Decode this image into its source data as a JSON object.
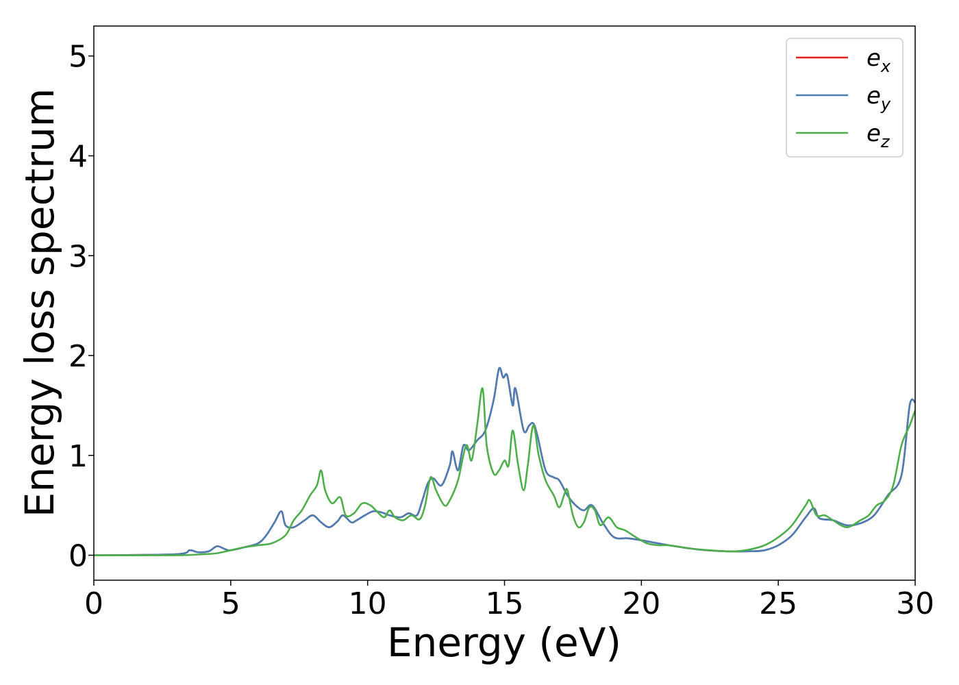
{
  "chart_data": {
    "type": "line",
    "xlabel": "Energy (eV)",
    "ylabel": "Energy loss spectrum",
    "xlim": [
      0,
      30
    ],
    "ylim": [
      -0.25,
      5.3
    ],
    "xticks": [
      0,
      5,
      10,
      15,
      20,
      25,
      30
    ],
    "yticks": [
      0,
      1,
      2,
      3,
      4,
      5
    ],
    "grid": false,
    "legend_position": "top-right",
    "series": [
      {
        "name": "e",
        "subscript": "x",
        "color": "#e41a1c",
        "x": [
          0,
          3.0,
          3.5,
          3.8,
          4.2,
          4.5,
          4.8,
          5.0,
          5.5,
          6.0,
          6.3,
          6.6,
          6.85,
          7.0,
          7.3,
          7.7,
          8.0,
          8.3,
          8.6,
          8.9,
          9.1,
          9.4,
          9.6,
          9.9,
          10.2,
          10.5,
          10.8,
          11.2,
          11.5,
          11.8,
          12.0,
          12.2,
          12.4,
          12.7,
          13.0,
          13.1,
          13.3,
          13.5,
          13.7,
          14.0,
          14.3,
          14.6,
          14.8,
          14.95,
          15.1,
          15.3,
          15.4,
          15.7,
          15.9,
          16.05,
          16.2,
          16.5,
          16.8,
          17.0,
          17.3,
          17.6,
          17.9,
          18.2,
          18.6,
          19.0,
          19.5,
          20.0,
          21.0,
          22.0,
          23.0,
          24.0,
          24.5,
          25.0,
          25.5,
          26.0,
          26.3,
          26.5,
          27.0,
          27.5,
          28.0,
          28.5,
          29.0,
          29.5,
          29.8,
          30.0
        ],
        "y": [
          0.0,
          0.01,
          0.05,
          0.03,
          0.04,
          0.09,
          0.06,
          0.05,
          0.08,
          0.12,
          0.2,
          0.33,
          0.44,
          0.3,
          0.28,
          0.35,
          0.4,
          0.33,
          0.28,
          0.34,
          0.4,
          0.33,
          0.35,
          0.4,
          0.44,
          0.43,
          0.4,
          0.38,
          0.42,
          0.4,
          0.55,
          0.72,
          0.77,
          0.7,
          0.9,
          1.04,
          0.85,
          1.1,
          1.05,
          1.15,
          1.25,
          1.55,
          1.87,
          1.78,
          1.8,
          1.5,
          1.67,
          1.25,
          1.3,
          1.32,
          1.2,
          0.85,
          0.78,
          0.75,
          0.6,
          0.5,
          0.45,
          0.5,
          0.32,
          0.18,
          0.17,
          0.15,
          0.1,
          0.06,
          0.04,
          0.04,
          0.05,
          0.1,
          0.2,
          0.38,
          0.47,
          0.37,
          0.35,
          0.3,
          0.32,
          0.4,
          0.6,
          0.8,
          1.5,
          1.53
        ]
      },
      {
        "name": "e",
        "subscript": "y",
        "color": "#4a7fb5",
        "x": [
          0,
          3.0,
          3.5,
          3.8,
          4.2,
          4.5,
          4.8,
          5.0,
          5.5,
          6.0,
          6.3,
          6.6,
          6.85,
          7.0,
          7.3,
          7.7,
          8.0,
          8.3,
          8.6,
          8.9,
          9.1,
          9.4,
          9.6,
          9.9,
          10.2,
          10.5,
          10.8,
          11.2,
          11.5,
          11.8,
          12.0,
          12.2,
          12.4,
          12.7,
          13.0,
          13.1,
          13.3,
          13.5,
          13.7,
          14.0,
          14.3,
          14.6,
          14.8,
          14.95,
          15.1,
          15.3,
          15.4,
          15.7,
          15.9,
          16.05,
          16.2,
          16.5,
          16.8,
          17.0,
          17.3,
          17.6,
          17.9,
          18.2,
          18.6,
          19.0,
          19.5,
          20.0,
          21.0,
          22.0,
          23.0,
          24.0,
          24.5,
          25.0,
          25.5,
          26.0,
          26.3,
          26.5,
          27.0,
          27.5,
          28.0,
          28.5,
          29.0,
          29.5,
          29.8,
          30.0
        ],
        "y": [
          0.0,
          0.01,
          0.05,
          0.03,
          0.04,
          0.09,
          0.06,
          0.05,
          0.08,
          0.12,
          0.2,
          0.33,
          0.44,
          0.3,
          0.28,
          0.35,
          0.4,
          0.33,
          0.28,
          0.34,
          0.4,
          0.33,
          0.35,
          0.4,
          0.44,
          0.43,
          0.4,
          0.38,
          0.42,
          0.4,
          0.55,
          0.72,
          0.77,
          0.7,
          0.9,
          1.04,
          0.85,
          1.1,
          1.05,
          1.15,
          1.25,
          1.55,
          1.87,
          1.78,
          1.8,
          1.5,
          1.67,
          1.25,
          1.3,
          1.32,
          1.2,
          0.85,
          0.78,
          0.75,
          0.6,
          0.5,
          0.45,
          0.5,
          0.32,
          0.18,
          0.17,
          0.15,
          0.1,
          0.06,
          0.04,
          0.04,
          0.05,
          0.1,
          0.2,
          0.38,
          0.47,
          0.37,
          0.35,
          0.3,
          0.32,
          0.4,
          0.6,
          0.8,
          1.5,
          1.53
        ]
      },
      {
        "name": "e",
        "subscript": "z",
        "color": "#4daf4a",
        "x": [
          0,
          3.0,
          4.0,
          4.5,
          5.0,
          5.5,
          6.0,
          6.5,
          7.0,
          7.3,
          7.6,
          7.9,
          8.15,
          8.3,
          8.45,
          8.7,
          9.0,
          9.2,
          9.5,
          9.8,
          10.1,
          10.3,
          10.6,
          10.8,
          11.0,
          11.3,
          11.6,
          11.9,
          12.1,
          12.3,
          12.5,
          12.8,
          13.0,
          13.3,
          13.6,
          13.8,
          14.0,
          14.2,
          14.35,
          14.6,
          14.8,
          15.0,
          15.15,
          15.3,
          15.5,
          15.7,
          15.85,
          16.05,
          16.25,
          16.5,
          16.8,
          17.0,
          17.2,
          17.3,
          17.5,
          17.7,
          17.9,
          18.1,
          18.3,
          18.5,
          18.8,
          19.1,
          19.4,
          19.8,
          20.2,
          20.6,
          21.0,
          21.5,
          22.0,
          22.5,
          23.0,
          23.5,
          24.0,
          24.5,
          25.0,
          25.5,
          26.0,
          26.15,
          26.4,
          26.7,
          27.0,
          27.5,
          28.0,
          28.3,
          28.6,
          28.9,
          29.2,
          29.5,
          29.8,
          30.0
        ],
        "y": [
          0.0,
          0.0,
          0.01,
          0.02,
          0.05,
          0.08,
          0.1,
          0.12,
          0.2,
          0.35,
          0.45,
          0.6,
          0.7,
          0.85,
          0.65,
          0.52,
          0.58,
          0.4,
          0.42,
          0.52,
          0.5,
          0.45,
          0.38,
          0.45,
          0.38,
          0.35,
          0.4,
          0.36,
          0.5,
          0.78,
          0.65,
          0.5,
          0.55,
          0.75,
          1.1,
          0.95,
          1.3,
          1.67,
          1.1,
          0.82,
          0.85,
          0.95,
          0.9,
          1.25,
          0.9,
          0.65,
          0.9,
          1.3,
          1.0,
          0.75,
          0.6,
          0.48,
          0.62,
          0.65,
          0.4,
          0.28,
          0.33,
          0.48,
          0.45,
          0.3,
          0.38,
          0.28,
          0.25,
          0.18,
          0.12,
          0.1,
          0.1,
          0.08,
          0.06,
          0.05,
          0.04,
          0.04,
          0.06,
          0.1,
          0.18,
          0.3,
          0.5,
          0.55,
          0.4,
          0.4,
          0.35,
          0.28,
          0.35,
          0.4,
          0.5,
          0.55,
          0.7,
          1.1,
          1.3,
          1.45
        ]
      }
    ]
  }
}
